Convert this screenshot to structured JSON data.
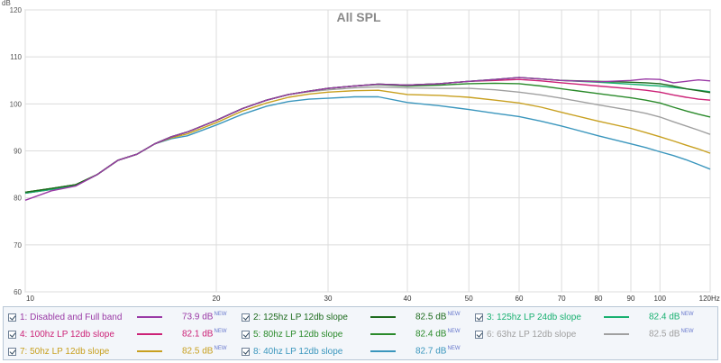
{
  "chart_data": {
    "type": "line",
    "title": "All SPL",
    "ylabel": "dB",
    "xunit": "Hz",
    "xscale": "log",
    "xlim": [
      10,
      120
    ],
    "ylim": [
      60,
      120
    ],
    "xticks": [
      "10",
      "20",
      "30",
      "40",
      "50",
      "60",
      "70",
      "80",
      "90",
      "100",
      "120"
    ],
    "yticks": [
      "60",
      "70",
      "80",
      "90",
      "100",
      "110",
      "120"
    ],
    "grid": true,
    "legend_position": "bottom",
    "series": [
      {
        "name": "1: Disabled and Full band",
        "color": "#9a3aa6",
        "level": "73.9 dB",
        "x": [
          10,
          11,
          12,
          13,
          14,
          15,
          16,
          17,
          18,
          20,
          22,
          24,
          26,
          28,
          30,
          33,
          36,
          40,
          45,
          50,
          55,
          60,
          65,
          70,
          80,
          90,
          95,
          100,
          105,
          110,
          115,
          120
        ],
        "y": [
          79.5,
          81.5,
          82.5,
          85,
          88,
          89.3,
          91.5,
          93,
          94,
          96.5,
          99,
          100.8,
          102,
          102.7,
          103.3,
          103.8,
          104.2,
          104,
          104.3,
          104.8,
          105.2,
          105.6,
          105.3,
          105,
          104.7,
          105,
          105.3,
          105.2,
          104.5,
          104.8,
          105.1,
          104.9
        ]
      },
      {
        "name": "2: 125hz LP 12db slope",
        "color": "#1e6b1e",
        "level": "82.5 dB",
        "x": [
          10,
          11,
          12,
          13,
          14,
          15,
          16,
          17,
          18,
          20,
          22,
          24,
          26,
          28,
          30,
          33,
          36,
          40,
          45,
          50,
          55,
          60,
          65,
          70,
          80,
          90,
          95,
          100,
          105,
          110,
          115,
          120
        ],
        "y": [
          81.2,
          82,
          82.8,
          85,
          88,
          89.3,
          91.5,
          93,
          94,
          96.5,
          99,
          100.8,
          102,
          102.7,
          103.3,
          103.8,
          104.2,
          104,
          104.3,
          104.8,
          105.2,
          105.6,
          105.3,
          105,
          104.8,
          104.6,
          104.5,
          104.3,
          103.8,
          103.2,
          102.8,
          102.4
        ]
      },
      {
        "name": "3: 125hz LP 24db slope",
        "color": "#18b070",
        "level": "82.4 dB",
        "x": [
          10,
          11,
          12,
          13,
          14,
          15,
          16,
          17,
          18,
          20,
          22,
          24,
          26,
          28,
          30,
          33,
          36,
          40,
          45,
          50,
          55,
          60,
          65,
          70,
          80,
          90,
          95,
          100,
          105,
          110,
          115,
          120
        ],
        "y": [
          81,
          81.8,
          82.6,
          85,
          88,
          89.3,
          91.5,
          93,
          94,
          96.5,
          99,
          100.8,
          102,
          102.7,
          103.3,
          103.8,
          104.2,
          104,
          104.3,
          104.8,
          105.2,
          105.6,
          105.3,
          105,
          104.6,
          104.2,
          104,
          103.8,
          103.5,
          103.2,
          102.9,
          102.6
        ]
      },
      {
        "name": "4: 100hz LP 12db slope",
        "color": "#cc2277",
        "level": "82.1 dB",
        "x": [
          10,
          11,
          12,
          13,
          14,
          15,
          16,
          17,
          18,
          20,
          22,
          24,
          26,
          28,
          30,
          33,
          36,
          40,
          45,
          50,
          55,
          60,
          65,
          70,
          80,
          90,
          95,
          100,
          105,
          110,
          115,
          120
        ],
        "y": [
          81,
          81.8,
          82.6,
          85,
          88,
          89.3,
          91.5,
          93,
          94,
          96.5,
          99,
          100.8,
          102,
          102.7,
          103.3,
          103.8,
          104.2,
          104,
          104.3,
          104.8,
          105,
          105.2,
          104.9,
          104.5,
          103.8,
          103.2,
          102.9,
          102.5,
          101.9,
          101.4,
          101,
          100.8
        ]
      },
      {
        "name": "5: 80hz LP 12db slope",
        "color": "#2a8a2a",
        "level": "82.4 dB",
        "x": [
          10,
          11,
          12,
          13,
          14,
          15,
          16,
          17,
          18,
          20,
          22,
          24,
          26,
          28,
          30,
          33,
          36,
          40,
          45,
          50,
          55,
          60,
          65,
          70,
          80,
          90,
          95,
          100,
          105,
          110,
          115,
          120
        ],
        "y": [
          81.2,
          82,
          82.8,
          85,
          88,
          89.3,
          91.5,
          93,
          94,
          96.5,
          99,
          100.8,
          102,
          102.7,
          103.3,
          103.8,
          104.1,
          103.8,
          104,
          104.3,
          104.4,
          104.3,
          103.8,
          103.2,
          102.2,
          101.3,
          100.8,
          100.2,
          99.3,
          98.5,
          97.8,
          97.2
        ]
      },
      {
        "name": "6: 63hz LP 12db slope",
        "color": "#a0a0a0",
        "level": "82.5 dB",
        "x": [
          10,
          11,
          12,
          13,
          14,
          15,
          16,
          17,
          18,
          20,
          22,
          24,
          26,
          28,
          30,
          33,
          36,
          40,
          45,
          50,
          55,
          60,
          65,
          70,
          80,
          90,
          95,
          100,
          105,
          110,
          115,
          120
        ],
        "y": [
          81.2,
          82,
          82.8,
          85,
          88,
          89.3,
          91.5,
          93,
          94,
          96.5,
          99,
          100.8,
          102,
          102.6,
          103,
          103.4,
          103.6,
          103.4,
          103.3,
          103.3,
          103,
          102.5,
          101.9,
          101.2,
          99.8,
          98.6,
          98,
          97.2,
          96.2,
          95.3,
          94.4,
          93.5
        ]
      },
      {
        "name": "7: 50hz LP 12db slope",
        "color": "#c8a020",
        "level": "82.5 dB",
        "x": [
          10,
          11,
          12,
          13,
          14,
          15,
          16,
          17,
          18,
          20,
          22,
          24,
          26,
          28,
          30,
          33,
          36,
          40,
          45,
          50,
          55,
          60,
          65,
          70,
          80,
          90,
          95,
          100,
          105,
          110,
          115,
          120
        ],
        "y": [
          81.2,
          82,
          82.8,
          85,
          88,
          89.3,
          91.5,
          92.8,
          93.6,
          96,
          98.5,
          100.2,
          101.4,
          102.1,
          102.5,
          102.8,
          102.9,
          102,
          101.8,
          101.4,
          100.8,
          100.2,
          99.3,
          98.2,
          96.3,
          94.8,
          93.9,
          93,
          92.1,
          91.2,
          90.4,
          89.5
        ]
      },
      {
        "name": "8: 40hz LP 12db slope",
        "color": "#3a96bd",
        "level": "82.7 dB",
        "x": [
          10,
          11,
          12,
          13,
          14,
          15,
          16,
          17,
          18,
          20,
          22,
          24,
          26,
          28,
          30,
          33,
          36,
          40,
          45,
          50,
          55,
          60,
          65,
          70,
          80,
          90,
          95,
          100,
          105,
          110,
          115,
          120
        ],
        "y": [
          81,
          81.8,
          82.6,
          85,
          88,
          89.3,
          91.5,
          92.6,
          93.2,
          95.5,
          97.8,
          99.5,
          100.5,
          101,
          101.2,
          101.5,
          101.5,
          100.3,
          99.6,
          98.8,
          98,
          97.3,
          96.3,
          95.3,
          93.2,
          91.5,
          90.7,
          89.8,
          89,
          88.1,
          87.1,
          86.1
        ]
      }
    ]
  }
}
